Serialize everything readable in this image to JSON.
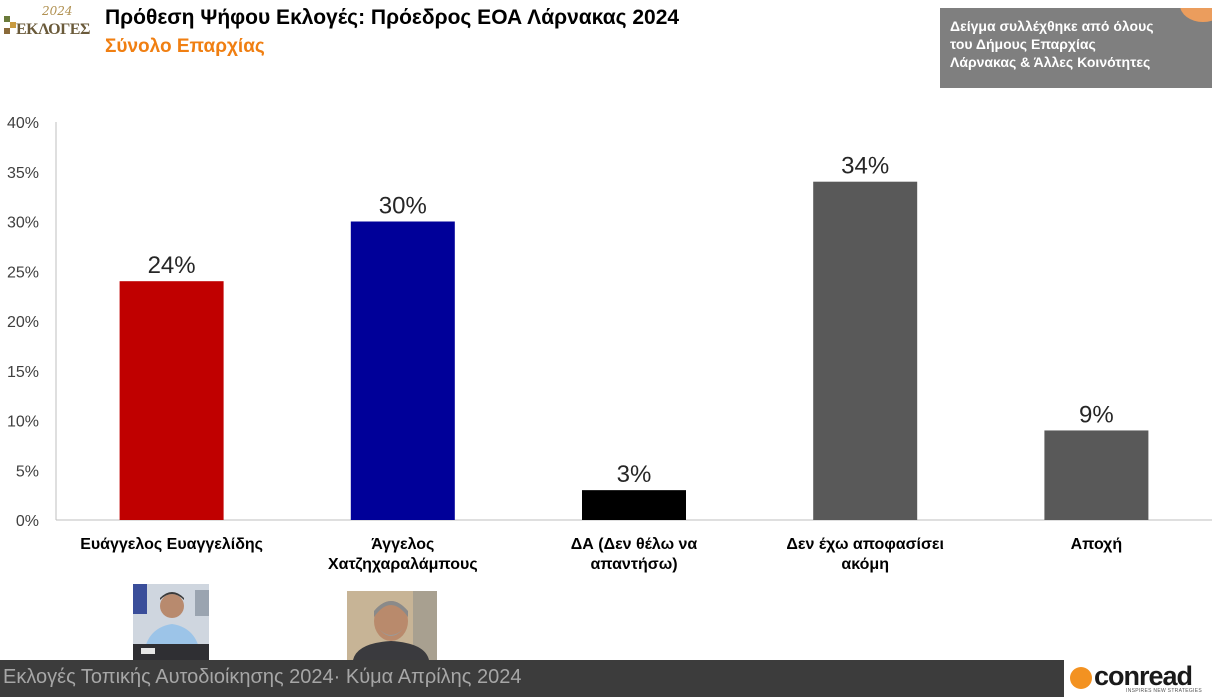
{
  "header": {
    "logo_year": "2024",
    "logo_word": "ΕΚΛΟΓΕΣ",
    "title": "Πρόθεση Ψήφου Εκλογές: Πρόεδρος ΕΟΑ Λάρνακας 2024",
    "subtitle": "Σύνολο Επαρχίας",
    "note_lines": [
      "Δείγμα συλλέχθηκε από όλους",
      "του Δήμους Επαρχίας",
      "Λάρνακας & Άλλες Κοινότητες"
    ]
  },
  "chart_data": {
    "type": "bar",
    "categories": [
      [
        "Ευάγγελος Ευαγγελίδης"
      ],
      [
        "Άγγελος",
        "Χατζηχαραλάμπους"
      ],
      [
        "ΔΑ (Δεν θέλω να",
        "απαντήσω)"
      ],
      [
        "Δεν έχω αποφασίσει",
        "ακόμη"
      ],
      [
        "Αποχή"
      ]
    ],
    "values": [
      24,
      30,
      3,
      34,
      9
    ],
    "data_labels": [
      "24%",
      "30%",
      "3%",
      "34%",
      "9%"
    ],
    "bar_colors": [
      "#c00000",
      "#000099",
      "#000000",
      "#595959",
      "#595959"
    ],
    "ylim": [
      0,
      40
    ],
    "yticks": [
      0,
      5,
      10,
      15,
      20,
      25,
      30,
      35,
      40
    ],
    "ytick_labels": [
      "0%",
      "5%",
      "10%",
      "15%",
      "20%",
      "25%",
      "30%",
      "35%",
      "40%"
    ],
    "grid": false,
    "legend": "none"
  },
  "photos": [
    {
      "name": "evangelides-photo"
    },
    {
      "name": "chatzicharalampous-photo"
    }
  ],
  "footer": {
    "text": "Εκλογές Τοπικής Αυτοδιοίκησης 2024· Κύμα Απρίλης 2024",
    "brand": "conread",
    "brand_tagline": "INSPIRES NEW STRATEGIES"
  },
  "colors": {
    "accent": "#f07f12",
    "note_bg": "#7f7f7f",
    "footer_bg": "#3c3c3c"
  }
}
